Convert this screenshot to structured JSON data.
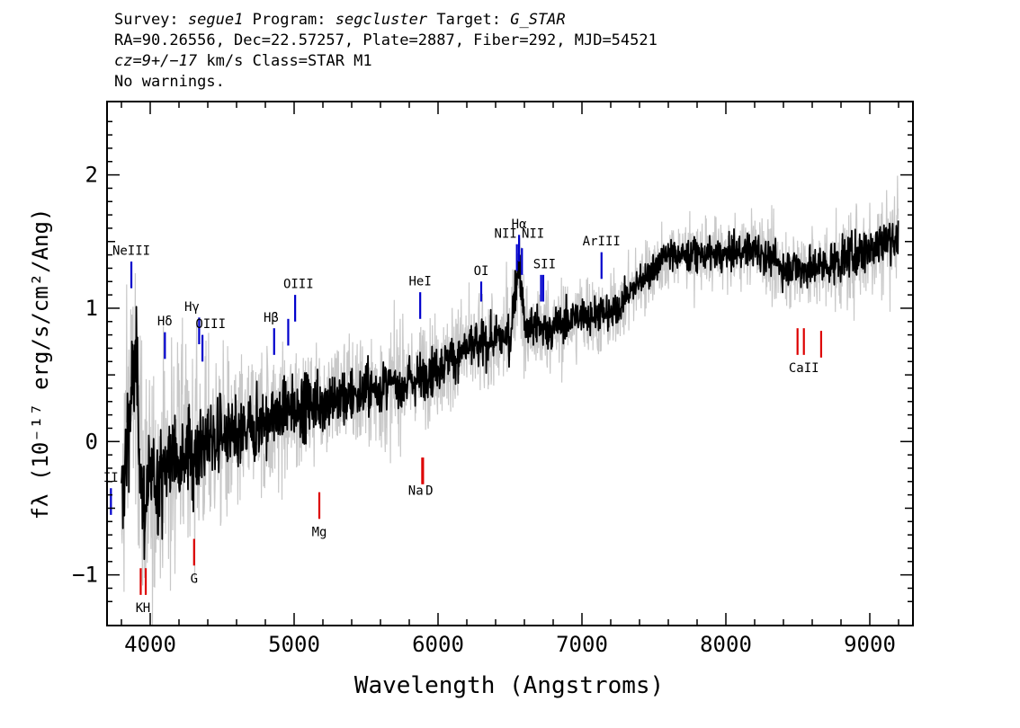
{
  "header": {
    "survey_label": "Survey:",
    "survey": "segue1",
    "program_label": "Program:",
    "program": "segcluster",
    "target_label": "Target:",
    "target": "G_STAR",
    "coords": "RA=90.26556, Dec=22.57257, Plate=2887, Fiber=292, MJD=54521",
    "cz_value": "cz=9+/−17",
    "cz_unit": "km/s",
    "class_text": "Class=STAR M1",
    "warnings": "No warnings."
  },
  "chart_data": {
    "type": "line",
    "title": "",
    "xlabel": "Wavelength (Angstroms)",
    "ylabel": "fλ (10⁻¹⁷ erg/s/cm²/Ang)",
    "xlim": [
      3700,
      9300
    ],
    "ylim": [
      -1.38,
      2.55
    ],
    "x_ticks": [
      4000,
      5000,
      6000,
      7000,
      8000,
      9000
    ],
    "x_tick_labels": [
      "4000",
      "5000",
      "6000",
      "7000",
      "8000",
      "9000"
    ],
    "y_ticks": [
      -1,
      0,
      1,
      2
    ],
    "y_tick_labels": [
      "−1",
      "0",
      "1",
      "2"
    ],
    "grid": false,
    "series": [
      {
        "role": "flux",
        "color": "#000000",
        "x": [
          3800,
          3850,
          3900,
          3950,
          4000,
          4100,
          4200,
          4300,
          4400,
          4500,
          4600,
          4700,
          4800,
          4900,
          5000,
          5200,
          5400,
          5600,
          5800,
          6000,
          6200,
          6400,
          6500,
          6563,
          6600,
          6800,
          7000,
          7200,
          7400,
          7600,
          7800,
          8000,
          8200,
          8400,
          8600,
          8800,
          9000,
          9200
        ],
        "y": [
          -0.55,
          0.2,
          0.6,
          -0.5,
          -0.35,
          -0.2,
          -0.05,
          -0.1,
          0.0,
          0.05,
          0.0,
          0.1,
          0.15,
          0.2,
          0.25,
          0.3,
          0.35,
          0.4,
          0.45,
          0.55,
          0.7,
          0.75,
          0.8,
          1.35,
          0.85,
          0.85,
          0.95,
          0.95,
          1.2,
          1.4,
          1.4,
          1.4,
          1.45,
          1.3,
          1.3,
          1.35,
          1.45,
          1.55
        ]
      },
      {
        "role": "error envelope",
        "color": "#c8c8c8",
        "x": [
          3800,
          4000,
          4500,
          5000,
          5500,
          6000,
          6500,
          7000,
          7500,
          8000,
          8500,
          9000,
          9200
        ],
        "y": [
          0.8,
          0.7,
          0.5,
          0.4,
          0.35,
          0.3,
          0.3,
          0.25,
          0.2,
          0.2,
          0.25,
          0.3,
          0.3
        ]
      }
    ],
    "emission_lines": [
      {
        "label": "NeIII",
        "x": 3869,
        "y1": 1.15,
        "y2": 1.35,
        "lx": 3869,
        "ly": 1.4
      },
      {
        "label": "II",
        "x": 3727,
        "y1": -0.55,
        "y2": -0.35,
        "lx": 3727,
        "ly": -0.3
      },
      {
        "label": "Hδ",
        "x": 4102,
        "y1": 0.62,
        "y2": 0.82,
        "lx": 4102,
        "ly": 0.87
      },
      {
        "label": "Hγ",
        "x": 4340,
        "y1": 0.73,
        "y2": 0.93,
        "lx": 4290,
        "ly": 0.98
      },
      {
        "label": "OIII",
        "x": 4363,
        "y1": 0.6,
        "y2": 0.8,
        "lx": 4420,
        "ly": 0.85
      },
      {
        "label": "Hβ",
        "x": 4861,
        "y1": 0.65,
        "y2": 0.85,
        "lx": 4840,
        "ly": 0.9
      },
      {
        "label": "",
        "x": 4959,
        "y1": 0.72,
        "y2": 0.92,
        "lx": 0,
        "ly": 0
      },
      {
        "label": "OIII",
        "x": 5007,
        "y1": 0.9,
        "y2": 1.1,
        "lx": 5030,
        "ly": 1.15
      },
      {
        "label": "HeI",
        "x": 5876,
        "y1": 0.92,
        "y2": 1.12,
        "lx": 5876,
        "ly": 1.17
      },
      {
        "label": "OI",
        "x": 6300,
        "y1": 1.05,
        "y2": 1.2,
        "lx": 6300,
        "ly": 1.25
      },
      {
        "label": "NII",
        "x": 6548,
        "y1": 1.28,
        "y2": 1.48,
        "lx": 6470,
        "ly": 1.53
      },
      {
        "label": "Hα",
        "x": 6563,
        "y1": 1.35,
        "y2": 1.55,
        "lx": 6563,
        "ly": 1.6
      },
      {
        "label": "NII",
        "x": 6583,
        "y1": 1.25,
        "y2": 1.45,
        "lx": 6660,
        "ly": 1.53
      },
      {
        "label": "SII",
        "x": 6716,
        "y1": 1.05,
        "y2": 1.25,
        "lx": 6740,
        "ly": 1.3
      },
      {
        "label": "",
        "x": 6731,
        "y1": 1.05,
        "y2": 1.25,
        "lx": 0,
        "ly": 0
      },
      {
        "label": "ArIII",
        "x": 7136,
        "y1": 1.22,
        "y2": 1.42,
        "lx": 7136,
        "ly": 1.47
      }
    ],
    "absorption_lines": [
      {
        "label": "K",
        "x": 3934,
        "y1": -1.15,
        "y2": -0.95,
        "lx": 3925,
        "ly": -1.28
      },
      {
        "label": "H",
        "x": 3969,
        "y1": -1.15,
        "y2": -0.95,
        "lx": 3975,
        "ly": -1.28
      },
      {
        "label": "G",
        "x": 4305,
        "y1": -0.93,
        "y2": -0.73,
        "lx": 4305,
        "ly": -1.06
      },
      {
        "label": "Mg",
        "x": 5175,
        "y1": -0.58,
        "y2": -0.38,
        "lx": 5175,
        "ly": -0.71
      },
      {
        "label": "Na",
        "x": 5890,
        "y1": -0.32,
        "y2": -0.12,
        "lx": 5845,
        "ly": -0.4
      },
      {
        "label": "D",
        "x": 5896,
        "y1": -0.32,
        "y2": -0.12,
        "lx": 5940,
        "ly": -0.4
      },
      {
        "label": "",
        "x": 8498,
        "y1": 0.65,
        "y2": 0.85,
        "lx": 0,
        "ly": 0
      },
      {
        "label": "CaII",
        "x": 8542,
        "y1": 0.65,
        "y2": 0.85,
        "lx": 8542,
        "ly": 0.52
      },
      {
        "label": "",
        "x": 8662,
        "y1": 0.63,
        "y2": 0.83,
        "lx": 0,
        "ly": 0
      }
    ]
  },
  "colors": {
    "flux": "#000000",
    "envelope": "#c8c8c8",
    "emission": "#0000cc",
    "absorption": "#dd0000"
  }
}
